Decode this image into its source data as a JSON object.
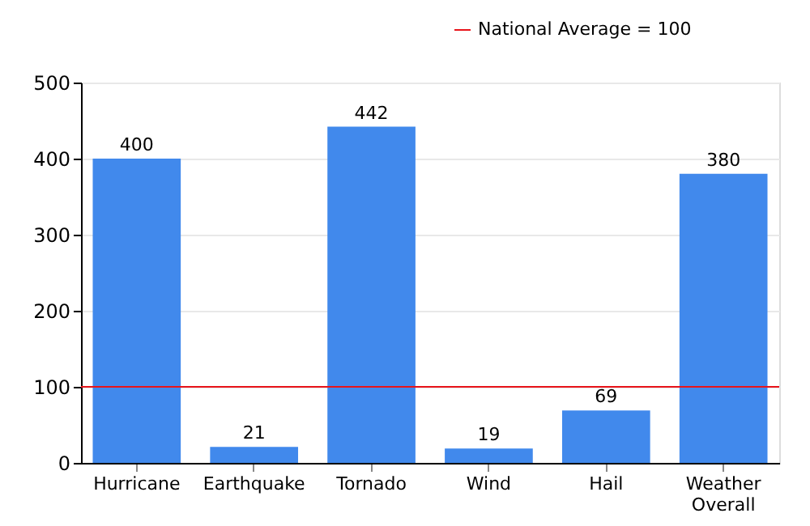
{
  "chart_data": {
    "type": "bar",
    "categories": [
      "Hurricane",
      "Earthquake",
      "Tornado",
      "Wind",
      "Hail",
      "Weather Overall"
    ],
    "values": [
      400,
      21,
      442,
      19,
      69,
      380
    ],
    "color": "#4189ec",
    "data_labels": true,
    "ylim": [
      0,
      500
    ],
    "yticks": [
      0,
      100,
      200,
      300,
      400,
      500
    ],
    "grid": "y",
    "legend": "top right",
    "ref_lines": [
      {
        "axis": "y",
        "value": 100,
        "label": "National Average = 100",
        "color": "#e8141a"
      }
    ]
  }
}
